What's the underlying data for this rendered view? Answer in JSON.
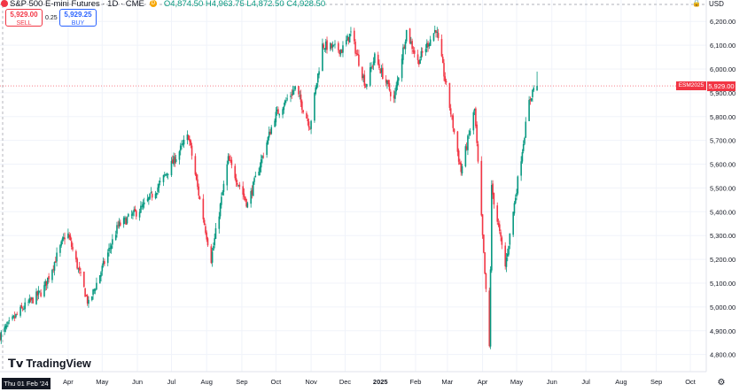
{
  "header": {
    "symbol_title": "S&P 500 E-mini Futures · 1D · CME",
    "badge": "D",
    "ohlc": "O4,874.50 H4,963.75 L4,872.50 C4,928.50"
  },
  "trade": {
    "sell_price": "5,929.00",
    "sell_label": "SELL",
    "spread": "0.25",
    "buy_price": "5,929.25",
    "buy_label": "BUY"
  },
  "axis": {
    "currency": "USD"
  },
  "last_price": {
    "symbol": "ESM2025",
    "value": "5,929.00"
  },
  "footer": {
    "logo": "TradingView",
    "cursor_date": "Thu 01 Feb '24"
  },
  "icons": {
    "lock": "lock-icon",
    "settings": "settings-icon",
    "logo_mark": "tradingview-logo-icon"
  },
  "colors": {
    "up": "#089981",
    "down": "#f23645",
    "grid": "#f0f3fa",
    "text": "#131722"
  },
  "chart_data": {
    "type": "candlestick",
    "y_ticks": [
      4800,
      4900,
      5000,
      5100,
      5200,
      5300,
      5400,
      5500,
      5600,
      5700,
      5800,
      5900,
      6000,
      6100,
      6200
    ],
    "y_tick_labels": [
      "4,800.00",
      "4,900.00",
      "5,000.00",
      "5,100.00",
      "5,200.00",
      "5,300.00",
      "5,400.00",
      "5,500.00",
      "5,600.00",
      "5,700.00",
      "5,800.00",
      "5,900.00",
      "6,000.00",
      "6,100.00",
      "6,200.00"
    ],
    "ylim": [
      4728,
      6290
    ],
    "x_ticks": [
      {
        "label": "Apr",
        "date": "2024-04-01"
      },
      {
        "label": "May",
        "date": "2024-05-01"
      },
      {
        "label": "Jun",
        "date": "2024-06-01"
      },
      {
        "label": "Jul",
        "date": "2024-07-01"
      },
      {
        "label": "Aug",
        "date": "2024-08-01"
      },
      {
        "label": "Sep",
        "date": "2024-09-01"
      },
      {
        "label": "Oct",
        "date": "2024-10-01"
      },
      {
        "label": "Nov",
        "date": "2024-11-01"
      },
      {
        "label": "Dec",
        "date": "2024-12-01"
      },
      {
        "label": "2025",
        "date": "2025-01-01",
        "bold": true
      },
      {
        "label": "Feb",
        "date": "2025-02-01"
      },
      {
        "label": "Mar",
        "date": "2025-03-01"
      },
      {
        "label": "Apr",
        "date": "2025-04-01"
      },
      {
        "label": "May",
        "date": "2025-05-01"
      },
      {
        "label": "Jun",
        "date": "2025-06-01"
      },
      {
        "label": "Jul",
        "date": "2025-07-01"
      },
      {
        "label": "Aug",
        "date": "2025-08-01"
      },
      {
        "label": "Sep",
        "date": "2025-09-01"
      },
      {
        "label": "Oct",
        "date": "2025-10-01"
      }
    ],
    "xlim": [
      "2024-02-01",
      "2025-10-15"
    ],
    "last_value": 5929.0,
    "series_path": [
      [
        "2024-02-01",
        4880
      ],
      [
        "2024-02-20",
        4990
      ],
      [
        "2024-03-10",
        5070
      ],
      [
        "2024-03-31",
        5320
      ],
      [
        "2024-04-19",
        5010
      ],
      [
        "2024-05-15",
        5340
      ],
      [
        "2024-06-06",
        5420
      ],
      [
        "2024-06-20",
        5510
      ],
      [
        "2024-07-16",
        5720
      ],
      [
        "2024-07-24",
        5500
      ],
      [
        "2024-08-05",
        5200
      ],
      [
        "2024-08-20",
        5620
      ],
      [
        "2024-09-06",
        5430
      ],
      [
        "2024-09-30",
        5800
      ],
      [
        "2024-10-18",
        5920
      ],
      [
        "2024-10-31",
        5760
      ],
      [
        "2024-11-11",
        6100
      ],
      [
        "2024-11-28",
        6080
      ],
      [
        "2024-12-06",
        6150
      ],
      [
        "2024-12-19",
        5930
      ],
      [
        "2024-12-27",
        6050
      ],
      [
        "2025-01-13",
        5870
      ],
      [
        "2025-01-24",
        6160
      ],
      [
        "2025-02-03",
        6030
      ],
      [
        "2025-02-19",
        6170
      ],
      [
        "2025-03-13",
        5570
      ],
      [
        "2025-03-25",
        5830
      ],
      [
        "2025-04-07",
        4830
      ],
      [
        "2025-04-09",
        5500
      ],
      [
        "2025-04-21",
        5170
      ],
      [
        "2025-05-12",
        5860
      ],
      [
        "2025-05-19",
        5970
      ]
    ]
  }
}
